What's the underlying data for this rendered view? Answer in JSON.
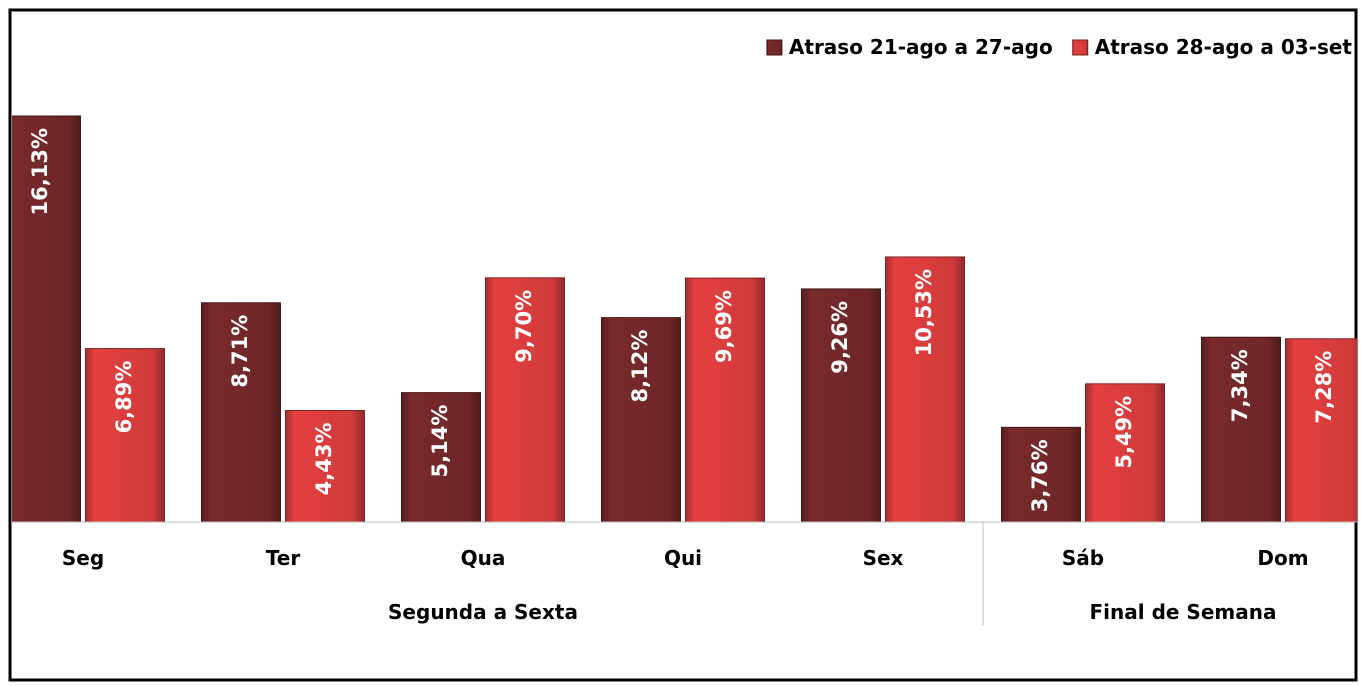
{
  "chart_data": {
    "type": "bar",
    "categories": [
      "Seg",
      "Ter",
      "Qua",
      "Qui",
      "Sex",
      "Sáb",
      "Dom"
    ],
    "groups": [
      {
        "name": "Segunda a Sexta",
        "span": 5
      },
      {
        "name": "Final de Semana",
        "span": 2
      }
    ],
    "series": [
      {
        "name": "Atraso 21-ago a 27-ago",
        "color": "#6e2628",
        "values": [
          16.13,
          8.71,
          5.14,
          8.12,
          9.26,
          3.76,
          7.34
        ],
        "value_labels": [
          "16,13%",
          "8,71%",
          "5,14%",
          "8,12%",
          "9,26%",
          "3,76%",
          "7,34%"
        ]
      },
      {
        "name": "Atraso 28-ago a 03-set",
        "color": "#d03a3a",
        "values": [
          6.89,
          4.43,
          9.7,
          9.69,
          10.53,
          5.49,
          7.28
        ],
        "value_labels": [
          "6,89%",
          "4,43%",
          "9,70%",
          "9,69%",
          "10,53%",
          "5,49%",
          "7,28%"
        ]
      }
    ],
    "legend": "top-right"
  }
}
